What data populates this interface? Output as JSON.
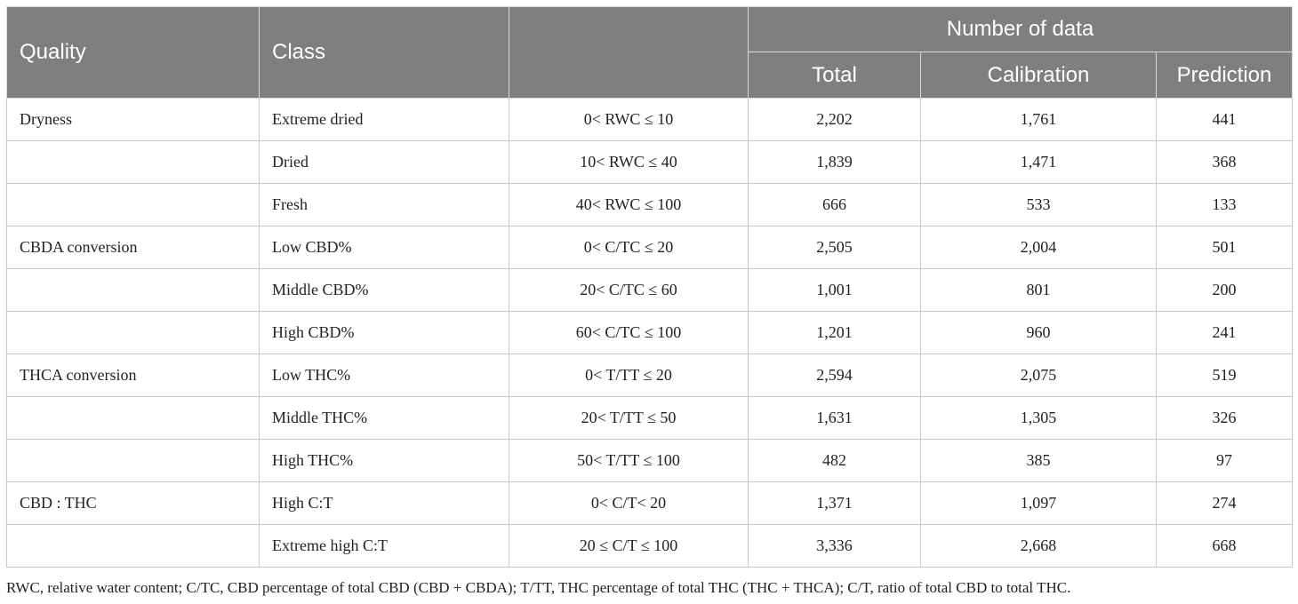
{
  "header": {
    "quality": "Quality",
    "class": "Class",
    "range": "",
    "group": "Number of data",
    "total": "Total",
    "calibration": "Calibration",
    "prediction": "Prediction"
  },
  "rows": [
    {
      "quality": "Dryness",
      "class": "Extreme dried",
      "range": "0< RWC ≤ 10",
      "total": "2,202",
      "calibration": "1,761",
      "prediction": "441"
    },
    {
      "quality": "",
      "class": "Dried",
      "range": "10< RWC ≤ 40",
      "total": "1,839",
      "calibration": "1,471",
      "prediction": "368"
    },
    {
      "quality": "",
      "class": "Fresh",
      "range": "40< RWC ≤ 100",
      "total": "666",
      "calibration": "533",
      "prediction": "133"
    },
    {
      "quality": "CBDA conversion",
      "class": "Low CBD%",
      "range": "0< C/TC ≤ 20",
      "total": "2,505",
      "calibration": "2,004",
      "prediction": "501"
    },
    {
      "quality": "",
      "class": "Middle CBD%",
      "range": "20< C/TC ≤ 60",
      "total": "1,001",
      "calibration": "801",
      "prediction": "200"
    },
    {
      "quality": "",
      "class": "High CBD%",
      "range": "60< C/TC ≤ 100",
      "total": "1,201",
      "calibration": "960",
      "prediction": "241"
    },
    {
      "quality": "THCA conversion",
      "class": "Low THC%",
      "range": "0< T/TT ≤ 20",
      "total": "2,594",
      "calibration": "2,075",
      "prediction": "519"
    },
    {
      "quality": "",
      "class": "Middle THC%",
      "range": "20< T/TT ≤ 50",
      "total": "1,631",
      "calibration": "1,305",
      "prediction": "326"
    },
    {
      "quality": "",
      "class": "High THC%",
      "range": "50< T/TT ≤ 100",
      "total": "482",
      "calibration": "385",
      "prediction": "97"
    },
    {
      "quality": "CBD : THC",
      "class": "High C:T",
      "range": "0< C/T< 20",
      "total": "1,371",
      "calibration": "1,097",
      "prediction": "274"
    },
    {
      "quality": "",
      "class": "Extreme high C:T",
      "range": "20 ≤ C/T ≤ 100",
      "total": "3,336",
      "calibration": "2,668",
      "prediction": "668"
    }
  ],
  "footnote": "RWC, relative water content; C/TC, CBD percentage of total CBD (CBD + CBDA); T/TT, THC percentage of total THC (THC + THCA); C/T, ratio of total CBD to total THC."
}
